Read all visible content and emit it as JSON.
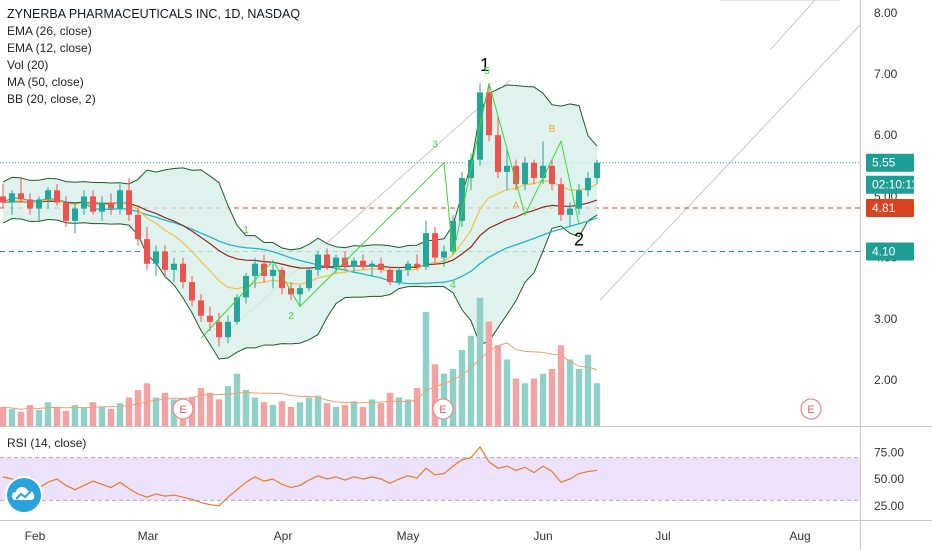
{
  "legend": {
    "title": "ZYNERBA PHARMACEUTICALS INC, 1D, NASDAQ",
    "studies": [
      "EMA (26, close)",
      "EMA (12, close)",
      "Vol (20)",
      "MA (50, close)",
      "BB (20, close, 2)"
    ]
  },
  "rsi_label": "RSI (14, close)",
  "colors": {
    "up": "#26a69a",
    "down": "#ef5350",
    "bb": "#1b5e20",
    "bb_fill": "#d5eee8",
    "ema26": "#8d2d1b",
    "ema12": "#f5c244",
    "ma50": "#26b5c8",
    "rsi": "#ec7b2a",
    "rsi_band": "#ede2fb",
    "wave": "#3ad63a",
    "wave_b": "#f3a33a"
  },
  "price_labels": [
    {
      "value": 5.55,
      "text": "5.55",
      "bg": "#1e9e94"
    },
    {
      "text": "02:10:11",
      "bg": "#1e9e94",
      "under": 5.55
    },
    {
      "value": 4.81,
      "text": "4.81",
      "bg": "#d8441f"
    },
    {
      "value": 4.1,
      "text": "4.10",
      "bg": "#1e9e94"
    }
  ],
  "chart_data": {
    "type": "candlestick",
    "title": "ZYNERBA PHARMACEUTICALS INC, 1D, NASDAQ",
    "y_ticks": [
      "8.00",
      "7.00",
      "6.00",
      "5.00",
      "4.00",
      "3.00",
      "2.00"
    ],
    "ylim": [
      1.35,
      8.2
    ],
    "rsi_ticks": [
      "75.00",
      "50.00",
      "25.00"
    ],
    "x_ticks": [
      "Feb",
      "Mar",
      "Apr",
      "May",
      "Jun",
      "Jul",
      "Aug"
    ],
    "horizontal_lines": [
      5.55,
      4.81,
      4.1
    ],
    "events": [
      "E",
      "E",
      "E"
    ],
    "wave_labels": [
      {
        "text": "1",
        "style": "big"
      },
      {
        "text": "2",
        "style": "big"
      },
      {
        "text": "1",
        "style": "small"
      },
      {
        "text": "2",
        "style": "small"
      },
      {
        "text": "3",
        "style": "small"
      },
      {
        "text": "4",
        "style": "small"
      },
      {
        "text": "5",
        "style": "small"
      },
      {
        "text": "A",
        "style": "small_orange"
      },
      {
        "text": "B",
        "style": "small_orange"
      }
    ],
    "candles": [
      [
        5.0,
        5.2,
        4.8,
        4.9
      ],
      [
        4.9,
        5.1,
        4.7,
        5.05
      ],
      [
        5.05,
        5.3,
        4.9,
        4.95
      ],
      [
        4.95,
        5.05,
        4.7,
        4.8
      ],
      [
        4.8,
        5.0,
        4.6,
        4.95
      ],
      [
        4.95,
        5.15,
        4.8,
        5.1
      ],
      [
        5.1,
        5.2,
        4.85,
        4.9
      ],
      [
        4.9,
        5.0,
        4.5,
        4.6
      ],
      [
        4.6,
        4.9,
        4.4,
        4.8
      ],
      [
        4.8,
        5.1,
        4.7,
        5.0
      ],
      [
        5.0,
        5.1,
        4.7,
        4.75
      ],
      [
        4.75,
        5.0,
        4.6,
        4.9
      ],
      [
        4.9,
        5.05,
        4.7,
        4.8
      ],
      [
        4.8,
        5.2,
        4.7,
        5.1
      ],
      [
        5.1,
        5.3,
        4.6,
        4.7
      ],
      [
        4.7,
        4.8,
        4.2,
        4.3
      ],
      [
        4.3,
        4.5,
        3.8,
        3.9
      ],
      [
        3.9,
        4.2,
        3.7,
        4.1
      ],
      [
        4.1,
        4.2,
        3.7,
        3.8
      ],
      [
        3.8,
        4.0,
        3.6,
        3.9
      ],
      [
        3.9,
        4.0,
        3.5,
        3.6
      ],
      [
        3.6,
        3.7,
        3.2,
        3.3
      ],
      [
        3.3,
        3.4,
        2.95,
        3.05
      ],
      [
        3.05,
        3.2,
        2.8,
        2.95
      ],
      [
        2.95,
        3.1,
        2.55,
        2.7
      ],
      [
        2.7,
        3.05,
        2.6,
        2.95
      ],
      [
        2.95,
        3.4,
        2.9,
        3.35
      ],
      [
        3.35,
        3.75,
        3.25,
        3.7
      ],
      [
        3.7,
        4.0,
        3.5,
        3.9
      ],
      [
        3.9,
        4.05,
        3.6,
        3.7
      ],
      [
        3.7,
        3.9,
        3.5,
        3.8
      ],
      [
        3.8,
        3.85,
        3.4,
        3.5
      ],
      [
        3.5,
        3.6,
        3.3,
        3.4
      ],
      [
        3.4,
        3.55,
        3.2,
        3.5
      ],
      [
        3.5,
        3.85,
        3.45,
        3.8
      ],
      [
        3.8,
        4.1,
        3.7,
        4.05
      ],
      [
        4.05,
        4.15,
        3.8,
        3.85
      ],
      [
        3.85,
        4.05,
        3.75,
        4.0
      ],
      [
        4.0,
        4.1,
        3.8,
        3.85
      ],
      [
        3.85,
        4.0,
        3.75,
        3.95
      ],
      [
        3.95,
        4.05,
        3.8,
        3.85
      ],
      [
        3.85,
        3.95,
        3.7,
        3.9
      ],
      [
        3.9,
        4.0,
        3.75,
        3.8
      ],
      [
        3.8,
        3.85,
        3.55,
        3.6
      ],
      [
        3.6,
        3.85,
        3.55,
        3.8
      ],
      [
        3.8,
        3.95,
        3.7,
        3.9
      ],
      [
        3.9,
        4.05,
        3.8,
        3.85
      ],
      [
        3.85,
        4.6,
        3.8,
        4.4
      ],
      [
        4.4,
        4.5,
        3.9,
        4.0
      ],
      [
        4.0,
        4.2,
        3.85,
        4.1
      ],
      [
        4.1,
        4.7,
        4.05,
        4.6
      ],
      [
        4.6,
        5.4,
        4.5,
        5.3
      ],
      [
        5.3,
        5.7,
        5.1,
        5.6
      ],
      [
        5.6,
        6.85,
        5.5,
        6.7
      ],
      [
        6.7,
        6.8,
        5.9,
        6.0
      ],
      [
        6.0,
        6.3,
        5.3,
        5.4
      ],
      [
        5.4,
        5.8,
        5.1,
        5.5
      ],
      [
        5.5,
        5.6,
        5.1,
        5.2
      ],
      [
        5.2,
        5.65,
        5.1,
        5.55
      ],
      [
        5.55,
        5.6,
        5.2,
        5.3
      ],
      [
        5.3,
        5.9,
        5.2,
        5.5
      ],
      [
        5.5,
        5.6,
        5.1,
        5.2
      ],
      [
        5.2,
        5.3,
        4.6,
        4.7
      ],
      [
        4.7,
        4.9,
        4.5,
        4.8
      ],
      [
        4.8,
        5.2,
        4.7,
        5.1
      ],
      [
        5.1,
        5.4,
        5.0,
        5.3
      ],
      [
        5.3,
        5.6,
        5.2,
        5.55
      ]
    ],
    "volumes": [
      0.2,
      0.18,
      0.15,
      0.22,
      0.17,
      0.25,
      0.2,
      0.16,
      0.22,
      0.19,
      0.25,
      0.2,
      0.18,
      0.24,
      0.3,
      0.38,
      0.45,
      0.3,
      0.35,
      0.28,
      0.22,
      0.3,
      0.4,
      0.35,
      0.28,
      0.42,
      0.55,
      0.38,
      0.3,
      0.25,
      0.22,
      0.26,
      0.2,
      0.25,
      0.3,
      0.32,
      0.24,
      0.2,
      0.22,
      0.26,
      0.2,
      0.28,
      0.24,
      0.35,
      0.3,
      0.28,
      0.4,
      1.2,
      0.65,
      0.55,
      0.6,
      0.8,
      0.95,
      1.35,
      1.1,
      0.85,
      0.7,
      0.5,
      0.45,
      0.5,
      0.55,
      0.6,
      0.85,
      0.7,
      0.6,
      0.75,
      0.45
    ],
    "rsi": [
      52,
      50,
      48,
      45,
      42,
      47,
      50,
      44,
      40,
      44,
      48,
      45,
      42,
      47,
      41,
      36,
      33,
      36,
      34,
      35,
      33,
      31,
      28,
      26,
      25,
      33,
      40,
      47,
      52,
      48,
      50,
      45,
      42,
      44,
      49,
      53,
      50,
      52,
      49,
      52,
      50,
      52,
      50,
      46,
      50,
      53,
      51,
      60,
      54,
      55,
      62,
      68,
      70,
      80,
      66,
      60,
      62,
      58,
      61,
      56,
      62,
      57,
      47,
      50,
      55,
      57,
      58
    ]
  }
}
